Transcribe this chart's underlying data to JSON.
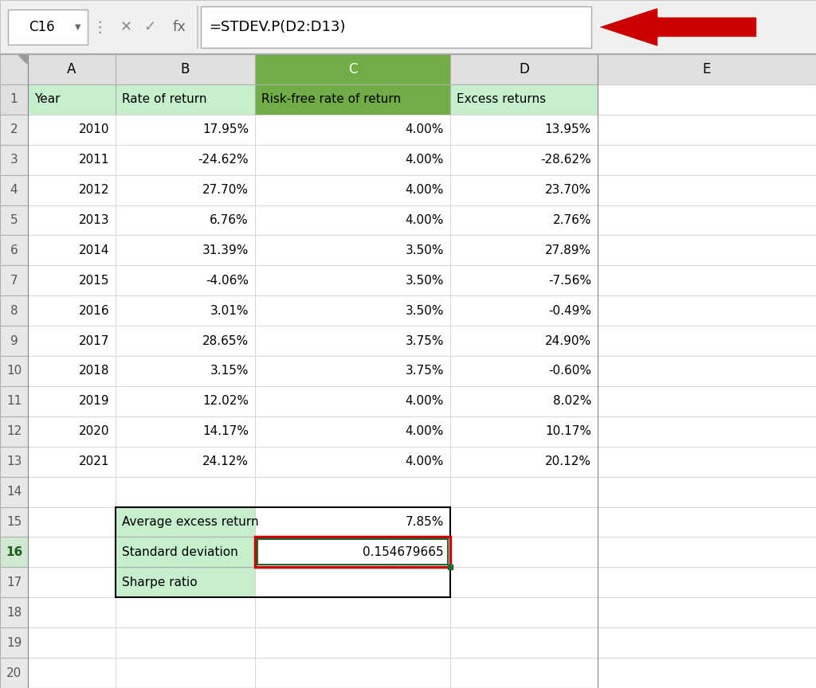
{
  "formula_bar_cell": "C16",
  "formula_bar_formula": "=STDEV.P(D2:D13)",
  "col_headers": [
    "A",
    "B",
    "C",
    "D",
    "E"
  ],
  "header_row": [
    "Year",
    "Rate of return",
    "Risk-free rate of return",
    "Excess returns"
  ],
  "data_rows": [
    [
      "2010",
      "17.95%",
      "4.00%",
      "13.95%"
    ],
    [
      "2011",
      "-24.62%",
      "4.00%",
      "-28.62%"
    ],
    [
      "2012",
      "27.70%",
      "4.00%",
      "23.70%"
    ],
    [
      "2013",
      "6.76%",
      "4.00%",
      "2.76%"
    ],
    [
      "2014",
      "31.39%",
      "3.50%",
      "27.89%"
    ],
    [
      "2015",
      "-4.06%",
      "3.50%",
      "-7.56%"
    ],
    [
      "2016",
      "3.01%",
      "3.50%",
      "-0.49%"
    ],
    [
      "2017",
      "28.65%",
      "3.75%",
      "24.90%"
    ],
    [
      "2018",
      "3.15%",
      "3.75%",
      "-0.60%"
    ],
    [
      "2019",
      "12.02%",
      "4.00%",
      "8.02%"
    ],
    [
      "2020",
      "14.17%",
      "4.00%",
      "10.17%"
    ],
    [
      "2021",
      "24.12%",
      "4.00%",
      "20.12%"
    ]
  ],
  "summary_labels": [
    "Average excess return",
    "Standard deviation",
    "Sharpe ratio"
  ],
  "summary_values": [
    "7.85%",
    "0.154679665",
    ""
  ],
  "light_green": "#c6efce",
  "med_green": "#70ad47",
  "red": "#cc0000",
  "white": "#ffffff",
  "black": "#000000",
  "toolbar_bg": "#f0f0f0",
  "sheet_bg": "#ffffff",
  "row_num_bg": "#e8e8e8",
  "col_hdr_bg": "#e0e0e0",
  "grid_color": "#d0d0d0",
  "border_color": "#b0b0b0"
}
